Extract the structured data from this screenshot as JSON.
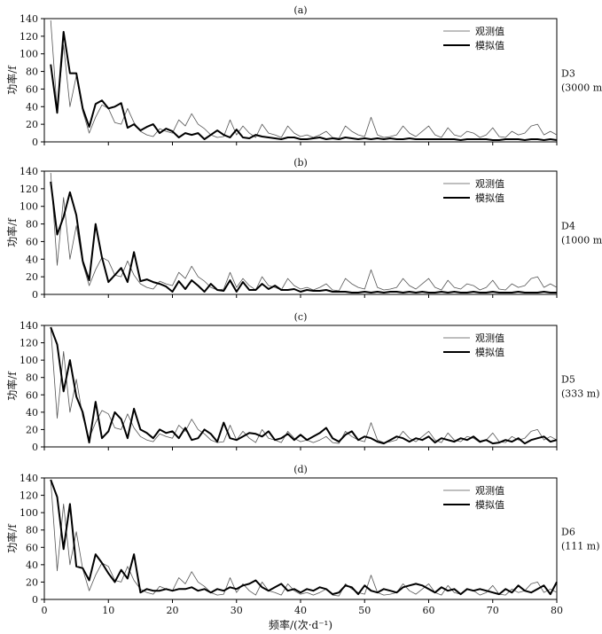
{
  "figure": {
    "xlabel": "频率/(次·d⁻¹)",
    "ylabel": "功率/f",
    "xticks": [
      0,
      10,
      20,
      30,
      40,
      50,
      60,
      70,
      80
    ],
    "yticks": [
      0,
      20,
      40,
      60,
      80,
      100,
      120,
      140
    ],
    "legend": [
      "观测值",
      "模拟值"
    ]
  },
  "chart_data": [
    {
      "type": "line",
      "panel_label": "(a)",
      "side_label_1": "D3",
      "side_label_2": "(3000 m)",
      "xlim": [
        0,
        80
      ],
      "ylim": [
        0,
        140
      ],
      "grid": false,
      "legend_position": "top-right",
      "x": [
        1,
        2,
        3,
        4,
        5,
        6,
        7,
        8,
        9,
        10,
        11,
        12,
        13,
        14,
        15,
        16,
        17,
        18,
        19,
        20,
        21,
        22,
        23,
        24,
        25,
        26,
        27,
        28,
        29,
        30,
        31,
        32,
        33,
        34,
        35,
        36,
        37,
        38,
        39,
        40,
        41,
        42,
        43,
        44,
        45,
        46,
        47,
        48,
        49,
        50,
        51,
        52,
        53,
        54,
        55,
        56,
        57,
        58,
        59,
        60,
        61,
        62,
        63,
        64,
        65,
        66,
        67,
        68,
        69,
        70,
        71,
        72,
        73,
        74,
        75,
        76,
        77,
        78,
        79,
        80
      ],
      "series": [
        {
          "name": "观测值",
          "style": "thin",
          "values": [
            138,
            35,
            110,
            40,
            75,
            35,
            10,
            28,
            42,
            38,
            22,
            20,
            38,
            22,
            12,
            8,
            6,
            15,
            12,
            10,
            25,
            18,
            32,
            20,
            15,
            8,
            5,
            6,
            25,
            8,
            18,
            10,
            5,
            20,
            10,
            8,
            5,
            18,
            10,
            6,
            8,
            5,
            8,
            12,
            5,
            4,
            18,
            12,
            8,
            6,
            28,
            8,
            5,
            6,
            8,
            18,
            10,
            6,
            12,
            18,
            8,
            5,
            16,
            8,
            6,
            12,
            10,
            5,
            8,
            16,
            6,
            5,
            12,
            8,
            10,
            18,
            20,
            8,
            12,
            8
          ]
        },
        {
          "name": "模拟值",
          "style": "thick",
          "values": [
            88,
            33,
            125,
            78,
            78,
            38,
            17,
            43,
            47,
            38,
            40,
            44,
            16,
            20,
            13,
            17,
            20,
            10,
            15,
            12,
            5,
            10,
            8,
            10,
            3,
            8,
            13,
            8,
            5,
            14,
            5,
            4,
            8,
            6,
            5,
            4,
            3,
            5,
            5,
            3,
            3,
            4,
            5,
            3,
            4,
            3,
            5,
            4,
            3,
            4,
            3,
            4,
            3,
            4,
            3,
            3,
            4,
            3,
            3,
            3,
            3,
            3,
            3,
            3,
            2,
            3,
            3,
            3,
            3,
            2,
            2,
            3,
            3,
            3,
            2,
            3,
            3,
            2,
            3,
            2
          ]
        }
      ]
    },
    {
      "type": "line",
      "panel_label": "(b)",
      "side_label_1": "D4",
      "side_label_2": "(1000 m)",
      "xlim": [
        0,
        80
      ],
      "ylim": [
        0,
        140
      ],
      "grid": false,
      "legend_position": "top-right",
      "x": [
        1,
        2,
        3,
        4,
        5,
        6,
        7,
        8,
        9,
        10,
        11,
        12,
        13,
        14,
        15,
        16,
        17,
        18,
        19,
        20,
        21,
        22,
        23,
        24,
        25,
        26,
        27,
        28,
        29,
        30,
        31,
        32,
        33,
        34,
        35,
        36,
        37,
        38,
        39,
        40,
        41,
        42,
        43,
        44,
        45,
        46,
        47,
        48,
        49,
        50,
        51,
        52,
        53,
        54,
        55,
        56,
        57,
        58,
        59,
        60,
        61,
        62,
        63,
        64,
        65,
        66,
        67,
        68,
        69,
        70,
        71,
        72,
        73,
        74,
        75,
        76,
        77,
        78,
        79,
        80
      ],
      "series": [
        {
          "name": "观测值",
          "style": "thin",
          "values": [
            138,
            33,
            110,
            40,
            78,
            35,
            10,
            28,
            42,
            38,
            22,
            20,
            38,
            22,
            12,
            8,
            6,
            15,
            12,
            10,
            25,
            18,
            32,
            20,
            15,
            8,
            5,
            6,
            25,
            8,
            18,
            10,
            5,
            20,
            10,
            8,
            5,
            18,
            10,
            6,
            8,
            5,
            8,
            12,
            5,
            4,
            18,
            12,
            8,
            6,
            28,
            8,
            5,
            6,
            8,
            18,
            10,
            6,
            12,
            18,
            8,
            5,
            16,
            8,
            6,
            12,
            10,
            5,
            8,
            16,
            6,
            5,
            12,
            8,
            10,
            18,
            20,
            8,
            12,
            8
          ]
        },
        {
          "name": "模拟值",
          "style": "thick",
          "values": [
            128,
            68,
            88,
            116,
            90,
            38,
            16,
            80,
            42,
            14,
            22,
            30,
            14,
            48,
            15,
            17,
            14,
            12,
            9,
            3,
            15,
            6,
            16,
            10,
            3,
            12,
            5,
            4,
            16,
            3,
            14,
            5,
            5,
            12,
            6,
            10,
            5,
            5,
            6,
            3,
            5,
            4,
            4,
            5,
            3,
            3,
            3,
            2,
            2,
            3,
            2,
            3,
            2,
            3,
            3,
            2,
            3,
            2,
            3,
            2,
            2,
            3,
            2,
            3,
            2,
            2,
            3,
            2,
            2,
            3,
            2,
            2,
            2,
            3,
            2,
            2,
            2,
            3,
            2,
            2
          ]
        }
      ]
    },
    {
      "type": "line",
      "panel_label": "(c)",
      "side_label_1": "D5",
      "side_label_2": "(333 m)",
      "xlim": [
        0,
        80
      ],
      "ylim": [
        0,
        140
      ],
      "grid": false,
      "legend_position": "top-right",
      "x": [
        1,
        2,
        3,
        4,
        5,
        6,
        7,
        8,
        9,
        10,
        11,
        12,
        13,
        14,
        15,
        16,
        17,
        18,
        19,
        20,
        21,
        22,
        23,
        24,
        25,
        26,
        27,
        28,
        29,
        30,
        31,
        32,
        33,
        34,
        35,
        36,
        37,
        38,
        39,
        40,
        41,
        42,
        43,
        44,
        45,
        46,
        47,
        48,
        49,
        50,
        51,
        52,
        53,
        54,
        55,
        56,
        57,
        58,
        59,
        60,
        61,
        62,
        63,
        64,
        65,
        66,
        67,
        68,
        69,
        70,
        71,
        72,
        73,
        74,
        75,
        76,
        77,
        78,
        79,
        80
      ],
      "series": [
        {
          "name": "观测值",
          "style": "thin",
          "values": [
            138,
            33,
            110,
            40,
            78,
            35,
            10,
            28,
            42,
            38,
            22,
            20,
            38,
            22,
            12,
            8,
            6,
            15,
            12,
            10,
            25,
            18,
            32,
            20,
            15,
            8,
            5,
            6,
            25,
            8,
            18,
            10,
            5,
            20,
            10,
            8,
            5,
            18,
            10,
            6,
            8,
            5,
            8,
            12,
            5,
            4,
            18,
            12,
            8,
            6,
            28,
            8,
            5,
            6,
            8,
            18,
            10,
            6,
            12,
            18,
            8,
            5,
            16,
            8,
            6,
            12,
            10,
            5,
            8,
            16,
            6,
            5,
            12,
            8,
            10,
            18,
            20,
            8,
            12,
            8
          ]
        },
        {
          "name": "模拟值",
          "style": "thick",
          "values": [
            138,
            118,
            64,
            100,
            58,
            40,
            5,
            52,
            10,
            18,
            40,
            32,
            10,
            44,
            20,
            16,
            10,
            20,
            16,
            18,
            10,
            22,
            8,
            10,
            20,
            15,
            6,
            28,
            10,
            8,
            12,
            16,
            15,
            12,
            18,
            8,
            10,
            15,
            8,
            14,
            8,
            12,
            16,
            22,
            10,
            6,
            14,
            18,
            8,
            12,
            10,
            6,
            4,
            8,
            12,
            10,
            6,
            10,
            8,
            12,
            5,
            10,
            8,
            6,
            10,
            8,
            12,
            6,
            8,
            4,
            5,
            8,
            6,
            10,
            4,
            8,
            10,
            12,
            6,
            8
          ]
        }
      ]
    },
    {
      "type": "line",
      "panel_label": "(d)",
      "side_label_1": "D6",
      "side_label_2": "(111 m)",
      "xlim": [
        0,
        80
      ],
      "ylim": [
        0,
        140
      ],
      "grid": false,
      "legend_position": "top-right",
      "x": [
        1,
        2,
        3,
        4,
        5,
        6,
        7,
        8,
        9,
        10,
        11,
        12,
        13,
        14,
        15,
        16,
        17,
        18,
        19,
        20,
        21,
        22,
        23,
        24,
        25,
        26,
        27,
        28,
        29,
        30,
        31,
        32,
        33,
        34,
        35,
        36,
        37,
        38,
        39,
        40,
        41,
        42,
        43,
        44,
        45,
        46,
        47,
        48,
        49,
        50,
        51,
        52,
        53,
        54,
        55,
        56,
        57,
        58,
        59,
        60,
        61,
        62,
        63,
        64,
        65,
        66,
        67,
        68,
        69,
        70,
        71,
        72,
        73,
        74,
        75,
        76,
        77,
        78,
        79,
        80
      ],
      "series": [
        {
          "name": "观测值",
          "style": "thin",
          "values": [
            138,
            33,
            110,
            40,
            78,
            35,
            10,
            28,
            42,
            38,
            22,
            20,
            38,
            22,
            12,
            8,
            6,
            15,
            12,
            10,
            25,
            18,
            32,
            20,
            15,
            8,
            5,
            6,
            25,
            8,
            18,
            10,
            5,
            20,
            10,
            8,
            5,
            18,
            10,
            6,
            8,
            5,
            8,
            12,
            5,
            4,
            18,
            12,
            8,
            6,
            28,
            8,
            5,
            6,
            8,
            18,
            10,
            6,
            12,
            18,
            8,
            5,
            16,
            8,
            6,
            12,
            10,
            5,
            8,
            16,
            6,
            5,
            12,
            8,
            10,
            18,
            20,
            8,
            12,
            8
          ]
        },
        {
          "name": "模拟值",
          "style": "thick",
          "values": [
            138,
            118,
            58,
            110,
            38,
            36,
            22,
            52,
            42,
            30,
            20,
            34,
            24,
            52,
            8,
            12,
            10,
            10,
            12,
            10,
            12,
            12,
            14,
            10,
            12,
            8,
            12,
            10,
            14,
            12,
            16,
            18,
            22,
            14,
            10,
            14,
            18,
            10,
            12,
            8,
            12,
            10,
            14,
            12,
            6,
            8,
            16,
            14,
            6,
            16,
            10,
            8,
            12,
            10,
            8,
            14,
            16,
            18,
            16,
            12,
            8,
            14,
            10,
            12,
            6,
            12,
            10,
            12,
            10,
            8,
            6,
            12,
            8,
            16,
            10,
            8,
            12,
            16,
            6,
            20
          ]
        }
      ]
    }
  ]
}
